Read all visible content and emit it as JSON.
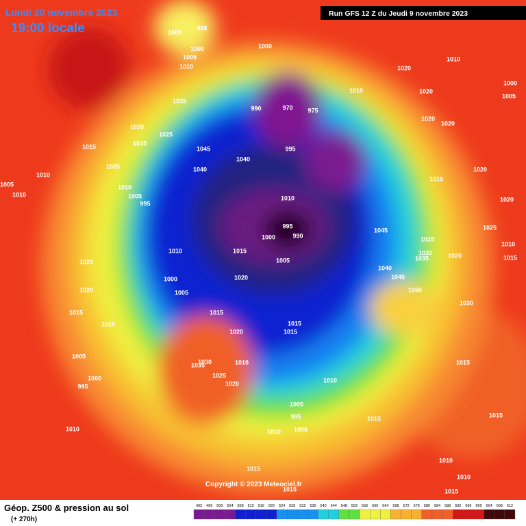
{
  "header": {
    "date": "Lundi 20 novembre 2023",
    "time": "19:00 locale",
    "run": "Run GFS 12 Z du Jeudi 9 novembre 2023"
  },
  "footer": {
    "title": "Géop. Z500 & pression au sol",
    "lead": "(+ 270h)",
    "copyright": "Copyright © 2023 Meteociel.fr"
  },
  "legend": {
    "values": [
      "492",
      "496",
      "500",
      "504",
      "508",
      "512",
      "516",
      "520",
      "524",
      "528",
      "532",
      "536",
      "540",
      "544",
      "548",
      "552",
      "556",
      "560",
      "564",
      "568",
      "572",
      "576",
      "580",
      "584",
      "588",
      "592",
      "596",
      "600",
      "604",
      "608",
      "612"
    ]
  },
  "isobar_labels": [
    "1000",
    "995",
    "1000",
    "1005",
    "1010",
    "1000",
    "1035",
    "1020",
    "1025",
    "1015",
    "1015",
    "1005",
    "1010",
    "1005",
    "1010",
    "1010",
    "1005",
    "995",
    "1040",
    "1040",
    "1045",
    "990",
    "970",
    "975",
    "995",
    "1010",
    "1020",
    "1010",
    "1020",
    "1020",
    "1020",
    "1015",
    "1020",
    "1000",
    "1005",
    "1010",
    "995",
    "1000",
    "990",
    "1005",
    "1015",
    "1045",
    "1025",
    "1030",
    "1035",
    "1020",
    "1010",
    "1025",
    "1020",
    "1015",
    "1040",
    "1045",
    "1050",
    "1030",
    "1010",
    "1020",
    "1005",
    "1000",
    "1015",
    "1020",
    "1015",
    "1015",
    "1025",
    "1020",
    "1015",
    "1010",
    "1005",
    "1030",
    "1035",
    "1010",
    "1025",
    "1020",
    "1000",
    "995",
    "1010",
    "1015",
    "1005",
    "995",
    "1000",
    "1010",
    "1015",
    "1015",
    "1010",
    "1010",
    "1010",
    "1015",
    "1015",
    "1015"
  ]
}
